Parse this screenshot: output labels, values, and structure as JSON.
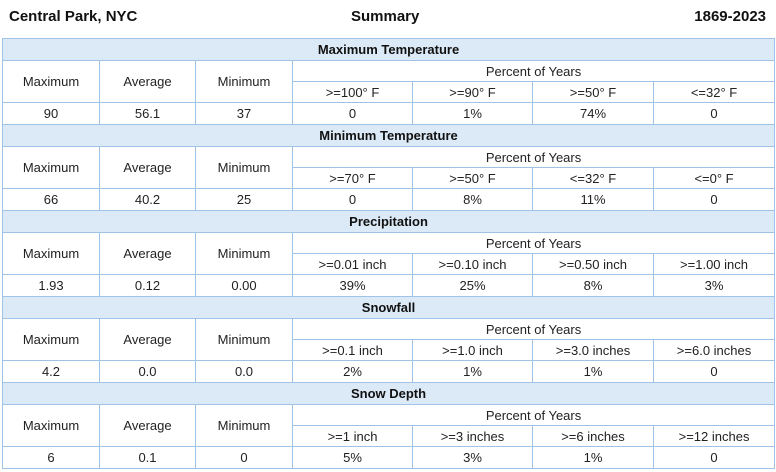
{
  "header": {
    "location": "Central Park, NYC",
    "title": "Summary",
    "period": "1869-2023"
  },
  "labels": {
    "maximum": "Maximum",
    "average": "Average",
    "minimum": "Minimum",
    "percent_of_years": "Percent of Years"
  },
  "sections": [
    {
      "title": "Maximum Temperature",
      "thresholds": [
        ">=100° F",
        ">=90° F",
        ">=50° F",
        "<=32° F"
      ],
      "max": "90",
      "avg": "56.1",
      "min": "37",
      "pcts": [
        "0",
        "1%",
        "74%",
        "0"
      ]
    },
    {
      "title": "Minimum Temperature",
      "thresholds": [
        ">=70° F",
        ">=50° F",
        "<=32° F",
        "<=0° F"
      ],
      "max": "66",
      "avg": "40.2",
      "min": "25",
      "pcts": [
        "0",
        "8%",
        "11%",
        "0"
      ]
    },
    {
      "title": "Precipitation",
      "thresholds": [
        ">=0.01 inch",
        ">=0.10 inch",
        ">=0.50 inch",
        ">=1.00 inch"
      ],
      "max": "1.93",
      "avg": "0.12",
      "min": "0.00",
      "pcts": [
        "39%",
        "25%",
        "8%",
        "3%"
      ]
    },
    {
      "title": "Snowfall",
      "thresholds": [
        ">=0.1 inch",
        ">=1.0 inch",
        ">=3.0 inches",
        ">=6.0 inches"
      ],
      "max": "4.2",
      "avg": "0.0",
      "min": "0.0",
      "pcts": [
        "2%",
        "1%",
        "1%",
        "0"
      ]
    },
    {
      "title": "Snow Depth",
      "thresholds": [
        ">=1 inch",
        ">=3 inches",
        ">=6 inches",
        ">=12 inches"
      ],
      "max": "6",
      "avg": "0.1",
      "min": "0",
      "pcts": [
        "5%",
        "3%",
        "1%",
        "0"
      ]
    }
  ]
}
